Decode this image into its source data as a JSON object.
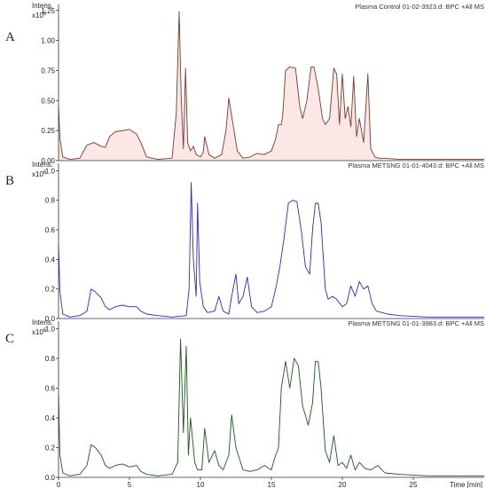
{
  "chart_data": [
    {
      "type": "line",
      "panel_label": "A",
      "info_text": "Plasma Control 01-02-3923.d: BPC +All MS",
      "ylabel_main": "Intens.",
      "ylabel_exp": "x10",
      "ylabel_pow": "6",
      "xlim": [
        0,
        30
      ],
      "ylim": [
        0,
        1.3
      ],
      "yticks": [
        0.0,
        0.25,
        0.5,
        0.75,
        1.0,
        1.25
      ],
      "ytick_labels": [
        "0.00",
        "0.25",
        "0.50",
        "0.75",
        "1.00",
        "1.25"
      ],
      "color": "#7a3a28",
      "highlight_color": "#e83a3a",
      "series": [
        {
          "x": [
            0,
            0.1,
            0.3,
            0.8,
            1.5,
            2.0,
            2.5,
            3.0,
            3.3,
            3.6,
            4.0,
            4.5,
            5.0,
            5.5,
            5.8,
            6.2,
            7.0,
            8.0,
            8.3,
            8.5,
            8.65,
            8.8,
            8.95,
            9.1,
            9.3,
            9.5,
            9.7,
            10.0,
            10.2,
            10.3,
            10.6,
            11.0,
            11.5,
            11.8,
            12.0,
            12.3,
            12.6,
            13.0,
            13.5,
            14.0,
            14.5,
            15.0,
            15.3,
            15.5,
            15.7,
            15.8,
            16.0,
            16.3,
            16.7,
            17.0,
            17.2,
            17.5,
            17.8,
            18.0,
            18.3,
            18.6,
            18.8,
            19.1,
            19.4,
            19.6,
            19.8,
            20.0,
            20.2,
            20.4,
            20.6,
            20.8,
            21.0,
            21.2,
            21.5,
            21.8,
            22.0,
            22.3,
            22.6,
            23.0,
            24.0,
            26.0,
            28.0,
            30.0
          ],
          "y": [
            0.45,
            0.18,
            0.03,
            0.01,
            0.02,
            0.13,
            0.15,
            0.12,
            0.11,
            0.2,
            0.24,
            0.25,
            0.26,
            0.22,
            0.15,
            0.03,
            0.01,
            0.02,
            0.4,
            1.24,
            0.5,
            0.1,
            0.77,
            0.15,
            0.08,
            0.12,
            0.05,
            0.03,
            0.07,
            0.2,
            0.05,
            0.02,
            0.05,
            0.25,
            0.52,
            0.3,
            0.08,
            0.02,
            0.03,
            0.06,
            0.05,
            0.08,
            0.18,
            0.3,
            0.3,
            0.38,
            0.75,
            0.78,
            0.77,
            0.45,
            0.35,
            0.5,
            0.78,
            0.78,
            0.6,
            0.35,
            0.3,
            0.35,
            0.77,
            0.72,
            0.3,
            0.72,
            0.35,
            0.45,
            0.28,
            0.7,
            0.2,
            0.35,
            0.15,
            0.72,
            0.1,
            0.03,
            0.02,
            0.02,
            0.01,
            0.01,
            0.01,
            0.01
          ]
        }
      ]
    },
    {
      "type": "line",
      "panel_label": "B",
      "info_text": "Plasma METSNG 01-01-4043.d: BPC +All MS",
      "ylabel_main": "Intens.",
      "ylabel_exp": "x10",
      "ylabel_pow": "6",
      "xlim": [
        0,
        30
      ],
      "ylim": [
        0,
        1.05
      ],
      "yticks": [
        0.0,
        0.2,
        0.4,
        0.6,
        0.8,
        1.0
      ],
      "ytick_labels": [
        "0.0",
        "0.2",
        "0.4",
        "0.6",
        "0.8",
        "1.0"
      ],
      "color": "#2a28d8",
      "highlight_color": "#e83a3a",
      "series": [
        {
          "x": [
            0,
            0.1,
            0.3,
            0.8,
            1.5,
            2.0,
            2.3,
            2.6,
            3.0,
            3.3,
            3.6,
            4.0,
            4.5,
            5.0,
            5.5,
            5.8,
            6.2,
            7.0,
            8.0,
            9.0,
            9.2,
            9.35,
            9.5,
            9.7,
            9.8,
            9.95,
            10.2,
            10.5,
            11.0,
            11.3,
            11.6,
            12.0,
            12.2,
            12.5,
            12.7,
            13.0,
            13.3,
            13.6,
            14.0,
            14.5,
            15.0,
            15.3,
            15.6,
            15.9,
            16.2,
            16.5,
            16.8,
            17.1,
            17.4,
            17.7,
            17.9,
            18.1,
            18.3,
            18.5,
            18.8,
            19.0,
            19.3,
            19.6,
            20.0,
            20.3,
            20.6,
            20.9,
            21.2,
            21.5,
            21.8,
            22.1,
            22.4,
            22.8,
            23.2,
            24.0,
            26.0,
            28.0,
            30.0
          ],
          "y": [
            0.5,
            0.18,
            0.03,
            0.01,
            0.02,
            0.05,
            0.2,
            0.18,
            0.14,
            0.08,
            0.06,
            0.08,
            0.09,
            0.08,
            0.08,
            0.05,
            0.03,
            0.02,
            0.01,
            0.02,
            0.2,
            0.92,
            0.4,
            0.15,
            0.78,
            0.25,
            0.08,
            0.04,
            0.05,
            0.15,
            0.05,
            0.03,
            0.15,
            0.3,
            0.1,
            0.15,
            0.28,
            0.08,
            0.04,
            0.05,
            0.08,
            0.2,
            0.35,
            0.55,
            0.78,
            0.8,
            0.79,
            0.6,
            0.35,
            0.3,
            0.6,
            0.78,
            0.78,
            0.65,
            0.2,
            0.13,
            0.15,
            0.13,
            0.08,
            0.1,
            0.22,
            0.15,
            0.25,
            0.2,
            0.22,
            0.1,
            0.05,
            0.04,
            0.03,
            0.02,
            0.01,
            0.01,
            0.01
          ]
        }
      ]
    },
    {
      "type": "line",
      "panel_label": "C",
      "info_text": "Plasma METSNG 01-01-3983.d: BPC +All MS",
      "ylabel_main": "Intens.",
      "ylabel_exp": "x10",
      "ylabel_pow": "6",
      "xlim": [
        0,
        30
      ],
      "ylim": [
        0,
        1.05
      ],
      "yticks": [
        0.0,
        0.2,
        0.4,
        0.6,
        0.8,
        1.0
      ],
      "ytick_labels": [
        "0.0",
        "0.2",
        "0.4",
        "0.6",
        "0.8",
        "1.0"
      ],
      "xticks": [
        0,
        5,
        10,
        15,
        20,
        25
      ],
      "xtick_labels": [
        "0",
        "5",
        "10",
        "15",
        "20",
        "25"
      ],
      "xlabel": "Time [min]",
      "color": "#1a5a1a",
      "series": [
        {
          "x": [
            0,
            0.1,
            0.3,
            0.8,
            1.5,
            2.0,
            2.3,
            2.6,
            3.0,
            3.3,
            3.6,
            4.0,
            4.5,
            5.0,
            5.5,
            5.8,
            6.2,
            7.0,
            8.0,
            8.4,
            8.6,
            8.8,
            9.0,
            9.15,
            9.3,
            9.6,
            9.8,
            10.1,
            10.3,
            10.6,
            11.0,
            11.3,
            11.6,
            12.0,
            12.2,
            12.5,
            13.0,
            13.5,
            14.0,
            14.5,
            15.0,
            15.2,
            15.5,
            15.7,
            16.0,
            16.3,
            16.6,
            16.9,
            17.2,
            17.6,
            17.9,
            18.1,
            18.3,
            18.5,
            18.8,
            19.1,
            19.4,
            19.7,
            20.0,
            20.3,
            20.6,
            20.9,
            21.2,
            21.6,
            22.0,
            22.5,
            23.0,
            24.0,
            26.0,
            28.0,
            30.0
          ],
          "y": [
            0.55,
            0.15,
            0.03,
            0.01,
            0.02,
            0.08,
            0.22,
            0.2,
            0.15,
            0.08,
            0.06,
            0.08,
            0.09,
            0.07,
            0.08,
            0.04,
            0.02,
            0.01,
            0.02,
            0.1,
            0.93,
            0.3,
            0.88,
            0.15,
            0.4,
            0.1,
            0.05,
            0.05,
            0.33,
            0.1,
            0.18,
            0.08,
            0.05,
            0.15,
            0.42,
            0.2,
            0.05,
            0.04,
            0.05,
            0.08,
            0.05,
            0.12,
            0.2,
            0.6,
            0.78,
            0.6,
            0.8,
            0.75,
            0.48,
            0.35,
            0.5,
            0.78,
            0.78,
            0.6,
            0.18,
            0.1,
            0.28,
            0.08,
            0.1,
            0.06,
            0.15,
            0.05,
            0.1,
            0.06,
            0.05,
            0.08,
            0.03,
            0.02,
            0.01,
            0.01,
            0.01
          ]
        }
      ]
    }
  ]
}
